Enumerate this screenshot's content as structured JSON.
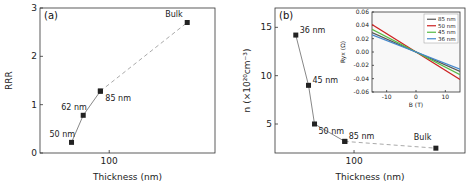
{
  "chart_data": [
    {
      "type": "line",
      "title": "(a)",
      "xlabel": "Thickness (nm)",
      "ylabel": "RRR",
      "log": "x",
      "xlim": [
        28,
        700
      ],
      "ylim": [
        0,
        3
      ],
      "xticks": [
        100
      ],
      "yticks": [
        0,
        1,
        2,
        3
      ],
      "series": [
        {
          "x": [
            50,
            62,
            85
          ],
          "values": [
            0.22,
            0.78,
            1.28
          ],
          "point_labels": [
            "50 nm",
            "62 nm",
            "85 nm"
          ],
          "color": "#888888",
          "line_style": "solid",
          "marker": "square"
        },
        {
          "x": [
            85,
            420
          ],
          "values": [
            1.28,
            2.7
          ],
          "point_labels": [
            null,
            "Bulk"
          ],
          "color": "#aaaaaa",
          "line_style": "dashed",
          "marker": "square"
        }
      ]
    },
    {
      "type": "line",
      "title": "(b)",
      "xlabel": "Thickness (nm)",
      "ylabel": "n (×10²⁰cm⁻³)",
      "log": "x",
      "xlim": [
        25,
        700
      ],
      "ylim": [
        2,
        17
      ],
      "xticks": [
        100
      ],
      "yticks": [
        5,
        10,
        15
      ],
      "series": [
        {
          "x": [
            36,
            45,
            50,
            85
          ],
          "values": [
            14.2,
            9.0,
            5.0,
            3.2
          ],
          "point_labels": [
            "36 nm",
            "45 nm",
            "50 nm",
            "85 nm"
          ],
          "color": "#888888",
          "line_style": "solid",
          "marker": "square"
        },
        {
          "x": [
            85,
            420
          ],
          "values": [
            3.2,
            2.5
          ],
          "point_labels": [
            null,
            "Bulk"
          ],
          "color": "#aaaaaa",
          "line_style": "dashed",
          "marker": "square"
        }
      ]
    },
    {
      "type": "line",
      "xlabel": "B (T)",
      "ylabel": "Ryx (Ω)",
      "xlim": [
        -15,
        15
      ],
      "ylim": [
        -0.06,
        0.06
      ],
      "xticks": [
        -10,
        0,
        10
      ],
      "yticks": [
        -0.06,
        -0.04,
        -0.02,
        {
          "value": 0,
          "label": "0.00"
        },
        0.02,
        0.04,
        0.06
      ],
      "legend": "upper right",
      "series": [
        {
          "name": "85 nm",
          "color": "#555555",
          "x": [
            -15,
            15
          ],
          "values": [
            0.02925,
            -0.02925
          ]
        },
        {
          "name": "50 nm",
          "color": "#cc2222",
          "x": [
            -15,
            15
          ],
          "values": [
            0.04125,
            -0.04125
          ]
        },
        {
          "name": "45 nm",
          "color": "#55bb44",
          "x": [
            -15,
            15
          ],
          "values": [
            0.0342,
            -0.0342
          ]
        },
        {
          "name": "36 nm",
          "color": "#4488cc",
          "x": [
            -15,
            15
          ],
          "values": [
            0.0258,
            -0.0258
          ]
        }
      ]
    }
  ]
}
